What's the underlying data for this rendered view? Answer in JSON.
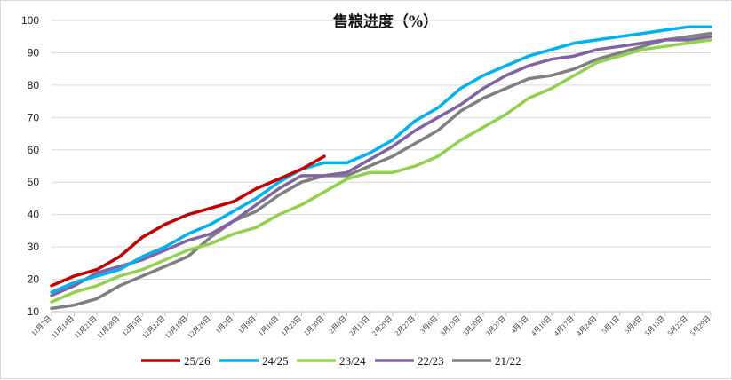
{
  "chart_data": {
    "type": "line",
    "title": "售粮进度（%）",
    "xlabel": "",
    "ylabel": "",
    "ylim": [
      10,
      100
    ],
    "yticks": [
      10,
      20,
      30,
      40,
      50,
      60,
      70,
      80,
      90,
      100
    ],
    "grid": "horizontal",
    "legend_position": "bottom",
    "categories": [
      "11月7日",
      "11月14日",
      "11月21日",
      "11月28日",
      "12月5日",
      "12月12日",
      "12月19日",
      "12月26日",
      "1月2日",
      "1月9日",
      "1月16日",
      "1月23日",
      "1月30日",
      "2月6日",
      "2月13日",
      "2月20日",
      "2月27日",
      "3月6日",
      "3月13日",
      "3月20日",
      "3月27日",
      "4月3日",
      "4月10日",
      "4月17日",
      "4月24日",
      "5月1日",
      "5月8日",
      "5月15日",
      "5月22日",
      "5月29日"
    ],
    "series": [
      {
        "name": "25/26",
        "color": "#c00000",
        "values": [
          18,
          21,
          23,
          27,
          33,
          37,
          40,
          42,
          44,
          48,
          51,
          54,
          58,
          null,
          null,
          null,
          null,
          null,
          null,
          null,
          null,
          null,
          null,
          null,
          null,
          null,
          null,
          null,
          null,
          null
        ]
      },
      {
        "name": "24/25",
        "color": "#00b0f0",
        "values": [
          16,
          19,
          21,
          23,
          27,
          30,
          34,
          37,
          41,
          45,
          50,
          54,
          56,
          56,
          59,
          63,
          69,
          73,
          79,
          83,
          86,
          89,
          91,
          93,
          94,
          95,
          96,
          97,
          98,
          98
        ]
      },
      {
        "name": "23/24",
        "color": "#92d050",
        "values": [
          13,
          16,
          18,
          21,
          23,
          26,
          29,
          31,
          34,
          36,
          40,
          43,
          47,
          51,
          53,
          53,
          55,
          58,
          63,
          67,
          71,
          76,
          79,
          83,
          87,
          89,
          91,
          92,
          93,
          94
        ]
      },
      {
        "name": "22/23",
        "color": "#8064a2",
        "values": [
          15,
          18,
          22,
          24,
          26,
          29,
          32,
          34,
          38,
          43,
          48,
          52,
          52,
          53,
          57,
          61,
          66,
          70,
          74,
          79,
          83,
          86,
          88,
          89,
          91,
          92,
          93,
          94,
          94,
          95
        ]
      },
      {
        "name": "21/22",
        "color": "#7f7f7f",
        "values": [
          11,
          12,
          14,
          18,
          21,
          24,
          27,
          33,
          38,
          41,
          46,
          50,
          52,
          52,
          55,
          58,
          62,
          66,
          72,
          76,
          79,
          82,
          83,
          85,
          88,
          90,
          92,
          94,
          95,
          96
        ]
      }
    ]
  }
}
